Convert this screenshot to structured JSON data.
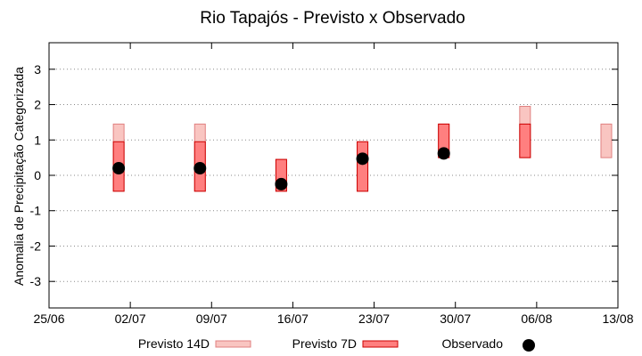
{
  "chart_data": {
    "type": "bar",
    "title": "Rio Tapajós - Previsto x Observado",
    "xlabel": "",
    "ylabel": "Anomalia de Precipitação Categorizada",
    "ylim": [
      -3.75,
      3.75
    ],
    "y_ticks": [
      -3,
      -2,
      -1,
      0,
      1,
      2,
      3
    ],
    "x_tick_labels": [
      "25/06",
      "02/07",
      "09/07",
      "16/07",
      "23/07",
      "30/07",
      "06/08",
      "13/08"
    ],
    "grid": "horizontal dotted",
    "legend_position": "bottom",
    "series": [
      {
        "name": "Previsto 14D",
        "color": "#f9c5c1",
        "border": "#e08080",
        "ranges": [
          {
            "x": "01/07",
            "low": -0.45,
            "high": 1.45
          },
          {
            "x": "08/07",
            "low": -0.45,
            "high": 1.45
          },
          {
            "x": "15/07",
            "low": -0.45,
            "high": 0.45
          },
          {
            "x": "22/07",
            "low": -0.45,
            "high": 0.95
          },
          {
            "x": "29/07",
            "low": 0.5,
            "high": 1.45
          },
          {
            "x": "05/08",
            "low": 0.5,
            "high": 1.95
          },
          {
            "x": "12/08",
            "low": 0.5,
            "high": 1.45
          }
        ]
      },
      {
        "name": "Previsto 7D",
        "color": "#ff7f7f",
        "border": "#cc0000",
        "ranges": [
          {
            "x": "01/07",
            "low": -0.45,
            "high": 0.95
          },
          {
            "x": "08/07",
            "low": -0.45,
            "high": 0.95
          },
          {
            "x": "15/07",
            "low": -0.45,
            "high": 0.45
          },
          {
            "x": "22/07",
            "low": -0.45,
            "high": 0.95
          },
          {
            "x": "29/07",
            "low": 0.5,
            "high": 1.45
          },
          {
            "x": "05/08",
            "low": 0.5,
            "high": 1.45
          }
        ]
      },
      {
        "name": "Observado",
        "color": "#000000",
        "points": [
          {
            "x": "01/07",
            "y": 0.2
          },
          {
            "x": "08/07",
            "y": 0.2
          },
          {
            "x": "15/07",
            "y": -0.25
          },
          {
            "x": "22/07",
            "y": 0.47
          },
          {
            "x": "29/07",
            "y": 0.62
          }
        ]
      }
    ]
  }
}
